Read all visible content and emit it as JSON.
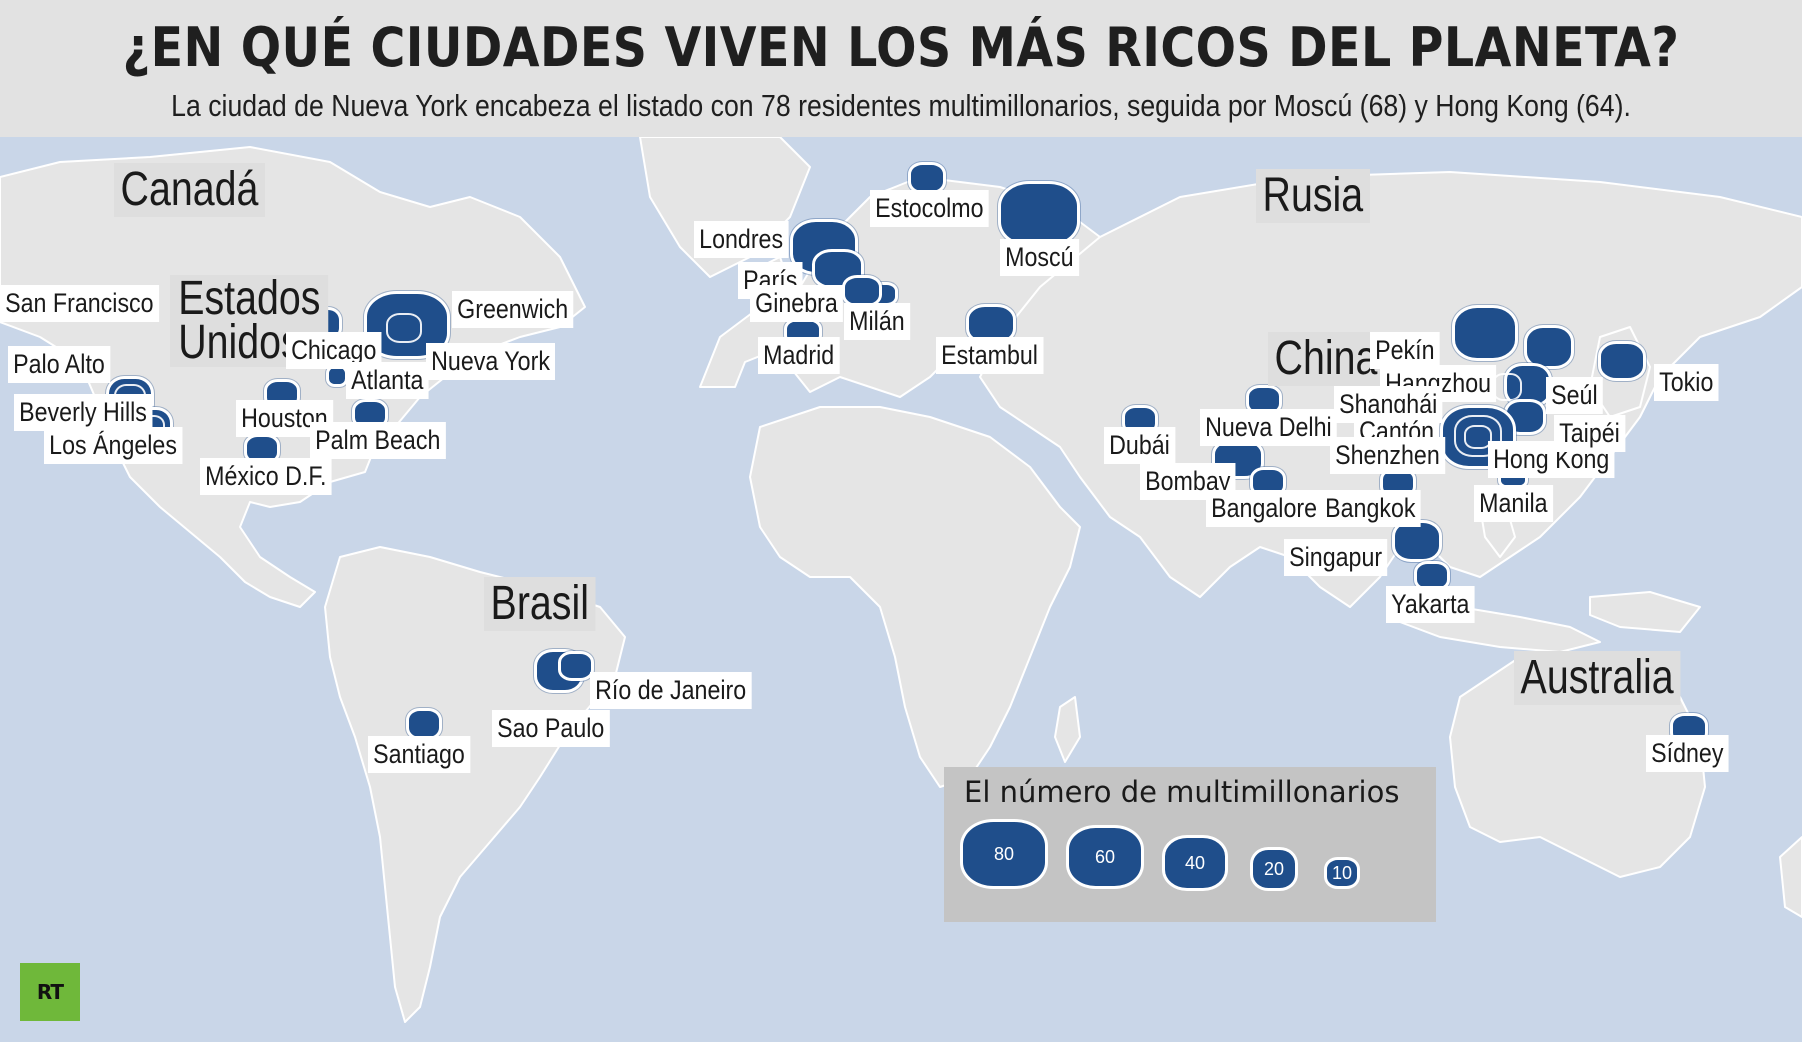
{
  "header": {
    "title": "¿EN QUÉ CIUDADES VIVEN LOS MÁS RICOS DEL PLANETA?",
    "subtitle": "La ciudad de Nueva York encabeza el listado con 78 residentes multimillonarios, seguida por Moscú (68) y Hong Kong (64)."
  },
  "colors": {
    "ocean": "#c9d6e8",
    "land": "#e5e5e5",
    "bubble": "#1f4e8b",
    "header": "#e2e2e2",
    "logo": "#6fb83a"
  },
  "countries": {
    "canada": "Canadá",
    "usa_line1": "Estados",
    "usa_line2": "Unidos",
    "brasil": "Brasil",
    "rusia": "Rusia",
    "china": "China",
    "australia": "Australia"
  },
  "cities": {
    "san_francisco": "San Francisco",
    "palo_alto": "Palo Alto",
    "beverly_hills": "Beverly Hills",
    "los_angeles": "Los Ángeles",
    "chicago": "Chicago",
    "greenwich": "Greenwich",
    "nueva_york": "Nueva York",
    "atlanta": "Atlanta",
    "houston": "Houston",
    "palm_beach": "Palm Beach",
    "mexico_df": "México D.F.",
    "rio": "Río de Janeiro",
    "sao_paulo": "Sao Paulo",
    "santiago": "Santiago",
    "londres": "Londres",
    "paris": "París",
    "ginebra": "Ginebra",
    "milan": "Milán",
    "madrid": "Madrid",
    "estocolmo": "Estocolmo",
    "moscu": "Moscú",
    "estambul": "Estambul",
    "dubai": "Dubái",
    "nueva_delhi": "Nueva Delhi",
    "bombay": "Bombay",
    "bangalore": "Bangalore",
    "pekin": "Pekín",
    "hangzhou": "Hangzhou",
    "shanghai": "Shanghái",
    "canton": "Cantón",
    "shenzhen": "Shenzhen",
    "hong_kong": "Hong Kong",
    "seul": "Seúl",
    "taipei": "Taipéi",
    "tokio": "Tokio",
    "manila": "Manila",
    "bangkok": "Bangkok",
    "singapur": "Singapur",
    "yakarta": "Yakarta",
    "sidney": "Sídney"
  },
  "legend": {
    "title": "El número de multimillonarios",
    "items": [
      "80",
      "60",
      "40",
      "20",
      "10"
    ]
  },
  "logo": {
    "text": "RT"
  }
}
